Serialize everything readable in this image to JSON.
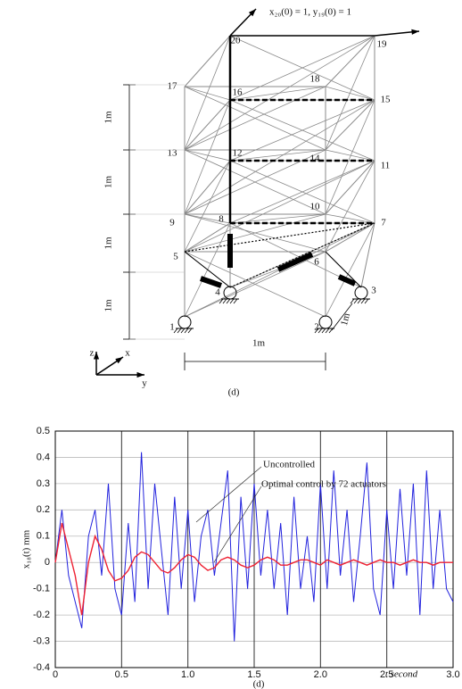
{
  "diagram": {
    "annotation": "x₂₀(0) = 1,    y₁₉(0) = 1",
    "caption": "(d)",
    "nodes": [
      "1",
      "2",
      "3",
      "4",
      "5",
      "6",
      "7",
      "8",
      "9",
      "10",
      "11",
      "12",
      "13",
      "14",
      "15",
      "16",
      "17",
      "18",
      "19",
      "20"
    ],
    "dimensions": [
      "1m",
      "1m",
      "1m",
      "1m",
      "1m",
      "1m"
    ],
    "axes": [
      "x",
      "y",
      "z"
    ]
  },
  "chart_data": {
    "type": "line",
    "caption": "(d)",
    "x_label": "t     second",
    "y_label": "x₁₈(t)  mm",
    "annotations": [
      "Uncontrolled",
      "Optimal control by 72 actuators"
    ],
    "x": [
      0,
      0.05,
      0.1,
      0.15,
      0.2,
      0.25,
      0.3,
      0.35,
      0.4,
      0.45,
      0.5,
      0.55,
      0.6,
      0.65,
      0.7,
      0.75,
      0.8,
      0.85,
      0.9,
      0.95,
      1.0,
      1.05,
      1.1,
      1.15,
      1.2,
      1.25,
      1.3,
      1.35,
      1.4,
      1.45,
      1.5,
      1.55,
      1.6,
      1.65,
      1.7,
      1.75,
      1.8,
      1.85,
      1.9,
      1.95,
      2.0,
      2.05,
      2.1,
      2.15,
      2.2,
      2.25,
      2.3,
      2.35,
      2.4,
      2.45,
      2.5,
      2.55,
      2.6,
      2.65,
      2.7,
      2.75,
      2.8,
      2.85,
      2.9,
      2.95,
      3.0
    ],
    "series": [
      {
        "color": "#2222dd",
        "values": [
          0,
          0.2,
          -0.05,
          -0.15,
          -0.25,
          0.1,
          0.2,
          -0.05,
          0.3,
          -0.1,
          -0.2,
          0.15,
          -0.15,
          0.42,
          -0.1,
          0.3,
          0.05,
          -0.2,
          0.25,
          -0.1,
          0.2,
          -0.15,
          0.1,
          0.2,
          -0.05,
          0.15,
          0.35,
          -0.3,
          0.25,
          -0.1,
          0.3,
          -0.05,
          0.2,
          -0.1,
          0.15,
          -0.2,
          0.25,
          -0.1,
          0.1,
          -0.15,
          0.3,
          -0.1,
          0.35,
          -0.05,
          0.2,
          -0.15,
          0.1,
          0.38,
          -0.1,
          -0.2,
          0.2,
          -0.1,
          0.28,
          -0.05,
          0.3,
          -0.2,
          0.35,
          -0.1,
          0.2,
          -0.1,
          -0.15
        ]
      },
      {
        "color": "#ee2233",
        "values": [
          0,
          0.15,
          0.05,
          -0.05,
          -0.2,
          0,
          0.1,
          0.05,
          -0.03,
          -0.07,
          -0.06,
          -0.03,
          0.02,
          0.04,
          0.03,
          0,
          -0.03,
          -0.04,
          -0.02,
          0.01,
          0.03,
          0.02,
          -0.01,
          -0.03,
          -0.02,
          0.01,
          0.02,
          0.01,
          -0.01,
          -0.02,
          -0.01,
          0.01,
          0.02,
          0.01,
          -0.01,
          -0.01,
          0,
          0.01,
          0.01,
          0,
          -0.01,
          0.01,
          0,
          -0.01,
          0,
          0.01,
          0,
          -0.01,
          0,
          0.01,
          0,
          0,
          -0.01,
          0,
          0.01,
          0,
          0,
          -0.01,
          0,
          0,
          0
        ]
      }
    ],
    "xlim": [
      0,
      3
    ],
    "ylim": [
      -0.4,
      0.5
    ],
    "xticks": [
      0,
      0.5,
      {
        "value": 1,
        "label": "1.0"
      },
      1.5,
      {
        "value": 2,
        "label": "2.0"
      },
      2.5,
      {
        "value": 3,
        "label": "3.0"
      }
    ],
    "yticks": [
      -0.4,
      -0.3,
      -0.2,
      -0.1,
      0,
      0.1,
      0.2,
      0.3,
      0.4,
      0.5
    ],
    "grid": true
  }
}
